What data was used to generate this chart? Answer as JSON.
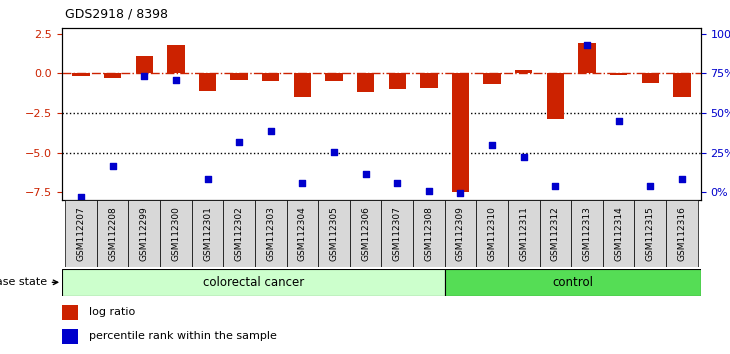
{
  "title": "GDS2918 / 8398",
  "samples": [
    "GSM112207",
    "GSM112208",
    "GSM112299",
    "GSM112300",
    "GSM112301",
    "GSM112302",
    "GSM112303",
    "GSM112304",
    "GSM112305",
    "GSM112306",
    "GSM112307",
    "GSM112308",
    "GSM112309",
    "GSM112310",
    "GSM112311",
    "GSM112312",
    "GSM112313",
    "GSM112314",
    "GSM112315",
    "GSM112316"
  ],
  "log_ratio": [
    -0.15,
    -0.3,
    1.1,
    1.8,
    -1.1,
    -0.4,
    -0.5,
    -1.5,
    -0.5,
    -1.2,
    -1.0,
    -0.9,
    -7.5,
    -0.7,
    0.2,
    -2.9,
    1.9,
    -0.1,
    -0.6,
    -1.5
  ],
  "percentile": [
    2,
    20,
    72,
    70,
    12,
    34,
    40,
    10,
    28,
    15,
    10,
    5,
    4,
    32,
    25,
    8,
    90,
    46,
    8,
    12
  ],
  "colorectal_count": 12,
  "ylim_left": [
    -8.0,
    2.85
  ],
  "yticks_left": [
    2.5,
    0.0,
    -2.5,
    -5.0,
    -7.5
  ],
  "yticks_right": [
    100,
    75,
    50,
    25,
    0
  ],
  "bar_color": "#cc2200",
  "dot_color": "#0000cc",
  "hline_color": "#cc2200",
  "dotted_color": "#000000",
  "colorectal_fill": "#ccffcc",
  "control_fill": "#55dd55",
  "label_colorectal": "colorectal cancer",
  "label_control": "control",
  "label_disease": "disease state",
  "legend_bar": "log ratio",
  "legend_dot": "percentile rank within the sample",
  "bar_width": 0.55
}
